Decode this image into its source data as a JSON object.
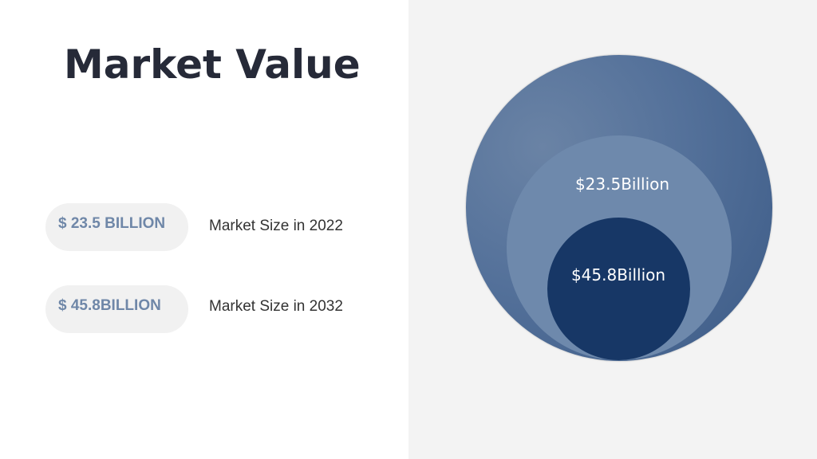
{
  "title": "Market Value",
  "metrics": [
    {
      "value": "$ 23.5 BILLION",
      "label": "Market Size in 2022"
    },
    {
      "value": "$ 45.8BILLION",
      "label": "Market Size in 2032"
    }
  ],
  "diagram": {
    "middle_label": "$23.5Billion",
    "inner_label": "$45.8Billion"
  },
  "colors": {
    "title": "#262a38",
    "pill_text": "#6f87a8",
    "outer_circle": "#54719a",
    "middle_circle": "#6e89ac",
    "inner_circle": "#173766",
    "right_panel_bg": "#f3f3f3"
  }
}
